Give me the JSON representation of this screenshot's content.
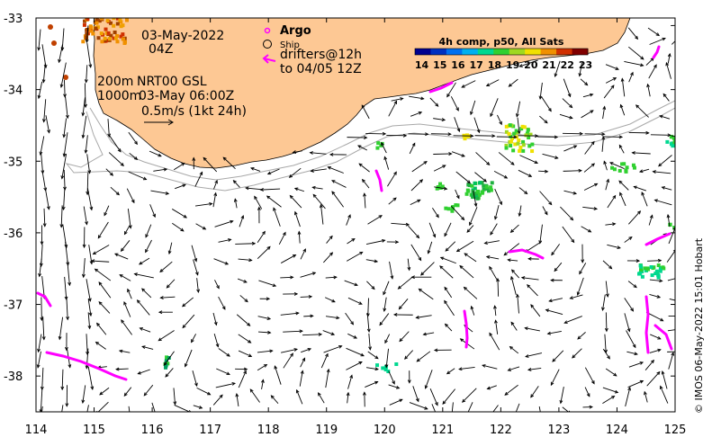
{
  "map": {
    "lon_range": [
      114,
      125
    ],
    "lat_range": [
      -38.5,
      -33
    ],
    "x_ticks": [
      "114",
      "115",
      "116",
      "117",
      "118",
      "119",
      "120",
      "121",
      "122",
      "123",
      "124",
      "125"
    ],
    "y_ticks": [
      "-33",
      "-34",
      "-35",
      "-36",
      "-37",
      "-38"
    ],
    "land_color": "#fdc894"
  },
  "annotations": {
    "date": "03-May-2022",
    "hour": "04Z",
    "contour_200": "200m",
    "contour_1000": "1000m",
    "product": "NRT00 GSL",
    "product_time": "03-May 06:00Z",
    "scale_label": "0.5m/s (1kt 24h)"
  },
  "legend": {
    "argo": "Argo",
    "ship": "Ship",
    "drifters_line1": "drifters@12h",
    "drifters_line2": "to 04/05 12Z",
    "argo_color": "#ff00ff",
    "drifter_color": "#ff00ff"
  },
  "colorbar": {
    "title": "4h comp, p50, All Sats",
    "labels": [
      "14",
      "15",
      "16",
      "17",
      "18",
      "19",
      "20",
      "21",
      "22",
      "23"
    ],
    "colors": [
      "#00008f",
      "#0030c0",
      "#0070f0",
      "#00b0f0",
      "#00d890",
      "#30d030",
      "#a0d820",
      "#f0e000",
      "#f09000",
      "#d03000",
      "#800000"
    ]
  },
  "credit": "© IMOS 06-May-2022 15:01 Hobart"
}
